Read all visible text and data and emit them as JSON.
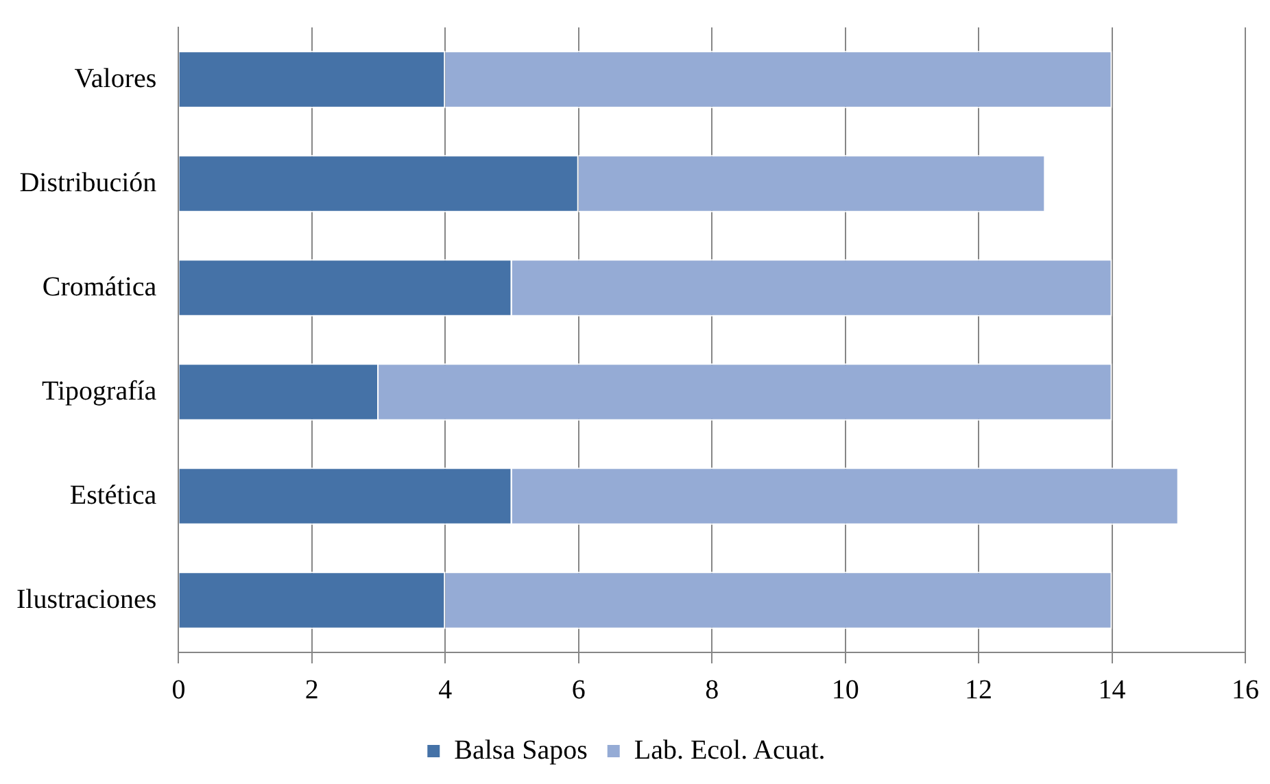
{
  "chart_data": {
    "type": "bar",
    "orientation": "horizontal",
    "stacked": true,
    "categories": [
      "Valores",
      "Distribución",
      "Cromática",
      "Tipografía",
      "Estética",
      "Ilustraciones"
    ],
    "series": [
      {
        "name": "Balsa Sapos",
        "color": "#4572a7",
        "values": [
          4,
          6,
          5,
          3,
          5,
          4
        ]
      },
      {
        "name": "Lab. Ecol. Acuat.",
        "color": "#95abd5",
        "values": [
          10,
          7,
          9,
          11,
          10,
          10
        ]
      }
    ],
    "xlim": [
      0,
      16
    ],
    "xticks": [
      0,
      2,
      4,
      6,
      8,
      10,
      12,
      14,
      16
    ],
    "grid": "x",
    "legend": "bottom"
  }
}
